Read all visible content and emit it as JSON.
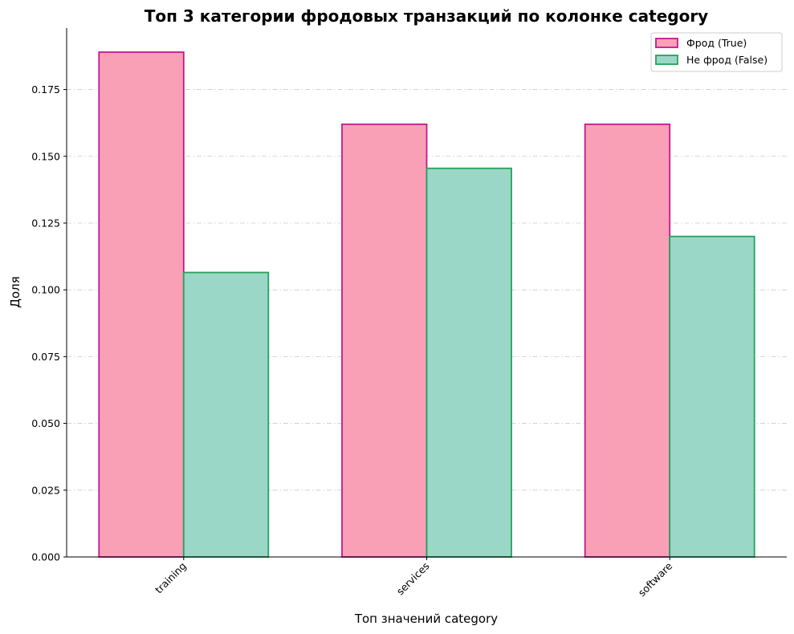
{
  "chart_data": {
    "type": "bar",
    "title": "Топ 3 категории фродовых транзакций по колонке category",
    "xlabel": "Топ значений category",
    "ylabel": "Доля",
    "categories": [
      "training",
      "services",
      "software"
    ],
    "series": [
      {
        "name": "Фрод (True)",
        "values": [
          0.189,
          0.162,
          0.162
        ],
        "fill": "#f9a0b7",
        "stroke": "#c2188f"
      },
      {
        "name": "Не фрод (False)",
        "values": [
          0.1065,
          0.1455,
          0.12
        ],
        "fill": "#9ad7c7",
        "stroke": "#23a35a"
      }
    ],
    "ylim": [
      0,
      0.198
    ],
    "yticks": [
      "0.000",
      "0.025",
      "0.050",
      "0.075",
      "0.100",
      "0.125",
      "0.150",
      "0.175"
    ],
    "grid": "horizontal, dash-dot, light gray",
    "legend_position": "top-right",
    "xtick_rotation": 45
  }
}
